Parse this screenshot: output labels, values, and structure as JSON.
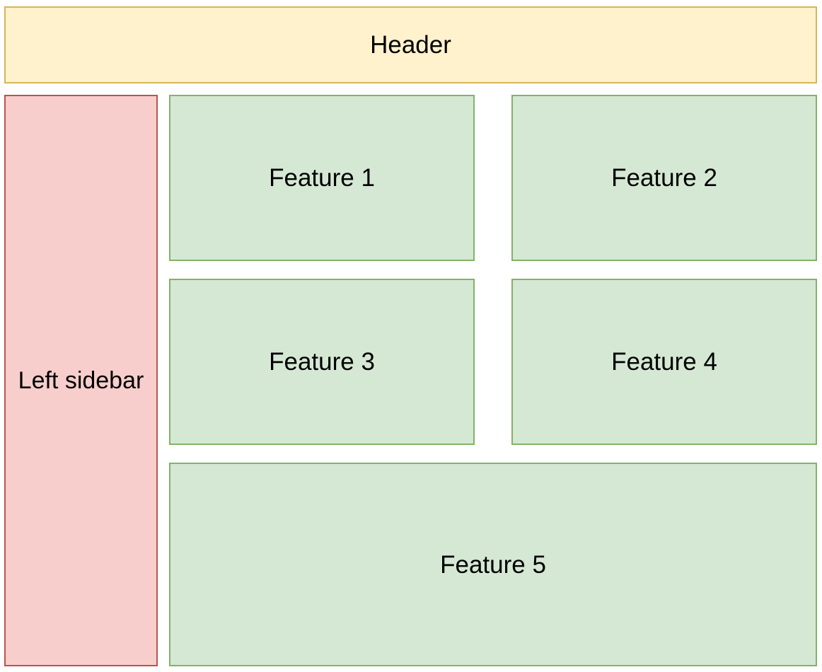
{
  "colors": {
    "header_fill": "#fff2cc",
    "header_stroke": "#d6b656",
    "sidebar_fill": "#f8cecc",
    "sidebar_stroke": "#b85450",
    "feature_fill": "#d5e8d4",
    "feature_stroke": "#82b366"
  },
  "header": {
    "label": "Header"
  },
  "sidebar": {
    "label": "Left sidebar"
  },
  "features": [
    {
      "label": "Feature 1"
    },
    {
      "label": "Feature 2"
    },
    {
      "label": "Feature 3"
    },
    {
      "label": "Feature 4"
    },
    {
      "label": "Feature 5"
    }
  ]
}
